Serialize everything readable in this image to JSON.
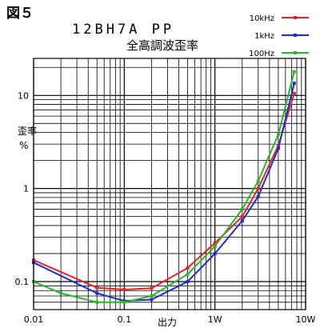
{
  "figure_label": "図５",
  "chart_data": {
    "type": "line",
    "title": "12BH7A PP",
    "subtitle": "全高調波歪率",
    "xlabel": "出力",
    "ylabel_line1": "歪率",
    "ylabel_line2": "%",
    "x_scale": "log",
    "y_scale": "log",
    "xlim": [
      0.01,
      10
    ],
    "ylim": [
      0.05,
      25
    ],
    "x_ticks": [
      {
        "value": 0.01,
        "label": "0.01"
      },
      {
        "value": 0.1,
        "label": "0.1"
      },
      {
        "value": 1,
        "label": "1W"
      },
      {
        "value": 10,
        "label": "10W"
      }
    ],
    "y_ticks": [
      {
        "value": 0.1,
        "label": "0.1"
      },
      {
        "value": 1,
        "label": "1"
      },
      {
        "value": 10,
        "label": "10"
      }
    ],
    "grid": true,
    "legend_position": "top-right",
    "series": [
      {
        "name": "10kHz",
        "color": "#e8232a",
        "x": [
          0.01,
          0.05,
          0.1,
          0.2,
          0.5,
          1,
          2,
          3,
          5,
          7.5
        ],
        "y": [
          0.17,
          0.086,
          0.082,
          0.085,
          0.14,
          0.26,
          0.5,
          1.0,
          2.9,
          10.5
        ]
      },
      {
        "name": "1kHz",
        "color": "#1e2bd6",
        "x": [
          0.01,
          0.05,
          0.1,
          0.2,
          0.5,
          1,
          2,
          3,
          5,
          7.5
        ],
        "y": [
          0.16,
          0.075,
          0.062,
          0.064,
          0.1,
          0.2,
          0.45,
          0.82,
          2.7,
          13.5
        ]
      },
      {
        "name": "100Hz",
        "color": "#2ab52a",
        "x": [
          0.01,
          0.02,
          0.05,
          0.1,
          0.2,
          0.5,
          1,
          2,
          3,
          5,
          7.5
        ],
        "y": [
          0.1,
          0.075,
          0.06,
          0.06,
          0.07,
          0.12,
          0.24,
          0.6,
          1.2,
          3.8,
          18
        ]
      }
    ]
  }
}
